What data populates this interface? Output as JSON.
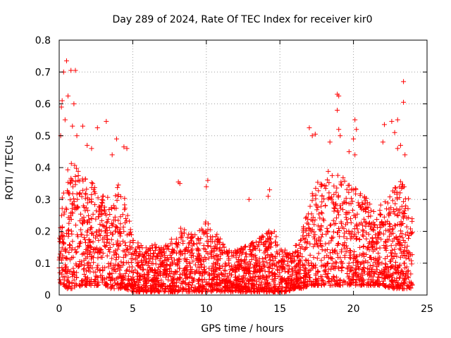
{
  "chart_data": {
    "type": "scatter",
    "title": "Day 289 of 2024, Rate Of TEC Index for receiver kir0",
    "xlabel": "GPS time / hours",
    "ylabel": "ROTI / TECUs",
    "xlim": [
      0,
      25
    ],
    "ylim": [
      0,
      0.8
    ],
    "xticks": [
      0,
      5,
      10,
      15,
      20,
      25
    ],
    "yticks": [
      0,
      0.1,
      0.2,
      0.3,
      0.4,
      0.5,
      0.6,
      0.7,
      0.8
    ],
    "xtick_labels": [
      "0",
      "5",
      "10",
      "15",
      "20",
      "25"
    ],
    "ytick_labels": [
      "0",
      "0.1",
      "0.2",
      "0.3",
      "0.4",
      "0.5",
      "0.6",
      "0.7",
      "0.8"
    ],
    "grid": true,
    "marker": "plus",
    "color": "#ff0000",
    "envelope": {
      "hours": [
        0,
        0.5,
        1,
        1.5,
        2,
        2.5,
        3,
        3.5,
        4,
        4.5,
        5,
        5.5,
        6,
        6.5,
        7,
        7.5,
        8,
        8.5,
        9,
        9.5,
        10,
        10.5,
        11,
        11.5,
        12,
        12.5,
        13,
        13.5,
        14,
        14.5,
        15,
        15.5,
        16,
        16.5,
        17,
        17.5,
        18,
        18.5,
        19,
        19.5,
        20,
        20.5,
        21,
        21.5,
        22,
        22.5,
        23,
        23.5,
        24
      ],
      "typical_max": [
        0.28,
        0.4,
        0.42,
        0.38,
        0.38,
        0.35,
        0.32,
        0.3,
        0.35,
        0.3,
        0.18,
        0.16,
        0.15,
        0.16,
        0.15,
        0.17,
        0.2,
        0.22,
        0.2,
        0.2,
        0.24,
        0.2,
        0.18,
        0.15,
        0.14,
        0.15,
        0.16,
        0.18,
        0.2,
        0.22,
        0.15,
        0.14,
        0.15,
        0.2,
        0.3,
        0.35,
        0.38,
        0.4,
        0.4,
        0.35,
        0.35,
        0.32,
        0.3,
        0.25,
        0.3,
        0.32,
        0.35,
        0.38,
        0.25
      ],
      "typical_min": [
        0.04,
        0.02,
        0.02,
        0.03,
        0.03,
        0.03,
        0.03,
        0.02,
        0.02,
        0.02,
        0.01,
        0.01,
        0.01,
        0.01,
        0.01,
        0.01,
        0.01,
        0.01,
        0.01,
        0.01,
        0.01,
        0.01,
        0.01,
        0.01,
        0.01,
        0.01,
        0.01,
        0.01,
        0.01,
        0.01,
        0.01,
        0.01,
        0.02,
        0.02,
        0.03,
        0.03,
        0.03,
        0.03,
        0.03,
        0.03,
        0.03,
        0.03,
        0.03,
        0.03,
        0.03,
        0.02,
        0.02,
        0.02,
        0.02
      ]
    },
    "outliers": [
      {
        "x": 0.5,
        "y": 0.735
      },
      {
        "x": 0.3,
        "y": 0.7
      },
      {
        "x": 0.8,
        "y": 0.705
      },
      {
        "x": 1.1,
        "y": 0.705
      },
      {
        "x": 0.2,
        "y": 0.61
      },
      {
        "x": 0.6,
        "y": 0.625
      },
      {
        "x": 1.0,
        "y": 0.6
      },
      {
        "x": 0.15,
        "y": 0.59
      },
      {
        "x": 0.4,
        "y": 0.55
      },
      {
        "x": 0.9,
        "y": 0.53
      },
      {
        "x": 0.1,
        "y": 0.5
      },
      {
        "x": 1.6,
        "y": 0.53
      },
      {
        "x": 1.2,
        "y": 0.5
      },
      {
        "x": 2.6,
        "y": 0.525
      },
      {
        "x": 3.2,
        "y": 0.545
      },
      {
        "x": 1.9,
        "y": 0.47
      },
      {
        "x": 3.9,
        "y": 0.49
      },
      {
        "x": 4.4,
        "y": 0.465
      },
      {
        "x": 4.6,
        "y": 0.46
      },
      {
        "x": 3.6,
        "y": 0.44
      },
      {
        "x": 2.2,
        "y": 0.46
      },
      {
        "x": 8.1,
        "y": 0.355
      },
      {
        "x": 8.2,
        "y": 0.35
      },
      {
        "x": 10.1,
        "y": 0.36
      },
      {
        "x": 10.0,
        "y": 0.34
      },
      {
        "x": 12.9,
        "y": 0.3
      },
      {
        "x": 14.2,
        "y": 0.31
      },
      {
        "x": 14.3,
        "y": 0.33
      },
      {
        "x": 17.0,
        "y": 0.525
      },
      {
        "x": 17.2,
        "y": 0.5
      },
      {
        "x": 17.4,
        "y": 0.505
      },
      {
        "x": 18.9,
        "y": 0.63
      },
      {
        "x": 19.0,
        "y": 0.625
      },
      {
        "x": 18.9,
        "y": 0.58
      },
      {
        "x": 19.0,
        "y": 0.52
      },
      {
        "x": 19.1,
        "y": 0.5
      },
      {
        "x": 18.4,
        "y": 0.48
      },
      {
        "x": 20.1,
        "y": 0.55
      },
      {
        "x": 20.2,
        "y": 0.52
      },
      {
        "x": 20.0,
        "y": 0.49
      },
      {
        "x": 19.7,
        "y": 0.45
      },
      {
        "x": 20.1,
        "y": 0.44
      },
      {
        "x": 22.1,
        "y": 0.535
      },
      {
        "x": 22.6,
        "y": 0.545
      },
      {
        "x": 22.8,
        "y": 0.51
      },
      {
        "x": 23.0,
        "y": 0.55
      },
      {
        "x": 23.4,
        "y": 0.67
      },
      {
        "x": 23.4,
        "y": 0.605
      },
      {
        "x": 23.2,
        "y": 0.47
      },
      {
        "x": 23.0,
        "y": 0.46
      },
      {
        "x": 22.0,
        "y": 0.48
      },
      {
        "x": 23.5,
        "y": 0.44
      }
    ]
  }
}
